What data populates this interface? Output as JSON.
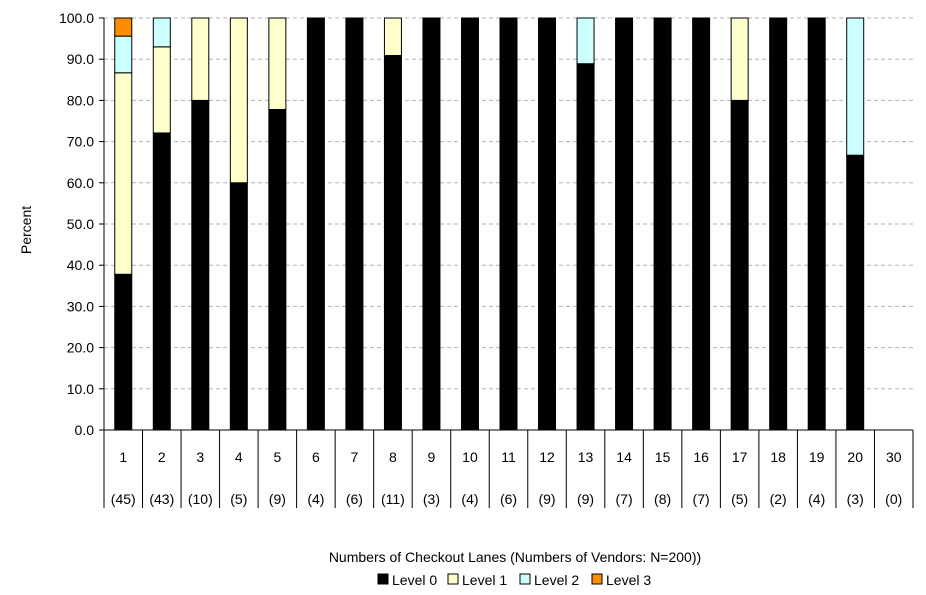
{
  "chart_data": {
    "type": "bar",
    "stacked": true,
    "categories": [
      "1",
      "2",
      "3",
      "4",
      "5",
      "6",
      "7",
      "8",
      "9",
      "10",
      "11",
      "12",
      "13",
      "14",
      "15",
      "16",
      "17",
      "18",
      "19",
      "20",
      "30"
    ],
    "vendor_counts": [
      "(45)",
      "(43)",
      "(10)",
      "(5)",
      "(9)",
      "(4)",
      "(6)",
      "(11)",
      "(3)",
      "(4)",
      "(6)",
      "(9)",
      "(9)",
      "(7)",
      "(8)",
      "(7)",
      "(5)",
      "(2)",
      "(4)",
      "(3)",
      "(0)"
    ],
    "series": [
      {
        "name": "Level 0",
        "color": "#000000",
        "values": [
          37.8,
          72.1,
          80.0,
          60.0,
          77.8,
          100.0,
          100.0,
          90.9,
          100.0,
          100.0,
          100.0,
          100.0,
          88.9,
          100.0,
          100.0,
          100.0,
          80.0,
          100.0,
          100.0,
          66.7,
          0
        ]
      },
      {
        "name": "Level 1",
        "color": "#FFFFCC",
        "values": [
          48.9,
          20.9,
          20.0,
          40.0,
          22.2,
          0,
          0,
          9.1,
          0,
          0,
          0,
          0,
          0,
          0,
          0,
          0,
          20.0,
          0,
          0,
          0,
          0
        ]
      },
      {
        "name": "Level 2",
        "color": "#CCFFFF",
        "values": [
          8.9,
          7.0,
          0,
          0,
          0,
          0,
          0,
          0,
          0,
          0,
          0,
          0,
          11.1,
          0,
          0,
          0,
          0,
          0,
          0,
          33.3,
          0
        ]
      },
      {
        "name": "Level 3",
        "color": "#FF8C00",
        "values": [
          4.4,
          0,
          0,
          0,
          0,
          0,
          0,
          0,
          0,
          0,
          0,
          0,
          0,
          0,
          0,
          0,
          0,
          0,
          0,
          0,
          0
        ]
      }
    ],
    "xlabel": "Numbers of Checkout Lanes (Numbers of Vendors: N=200))",
    "ylabel": "Percent",
    "ylim": [
      0,
      100
    ],
    "yticks": [
      "0.0",
      "10.0",
      "20.0",
      "30.0",
      "40.0",
      "50.0",
      "60.0",
      "70.0",
      "80.0",
      "90.0",
      "100.0"
    ],
    "grid": true,
    "legend_position": "bottom"
  }
}
